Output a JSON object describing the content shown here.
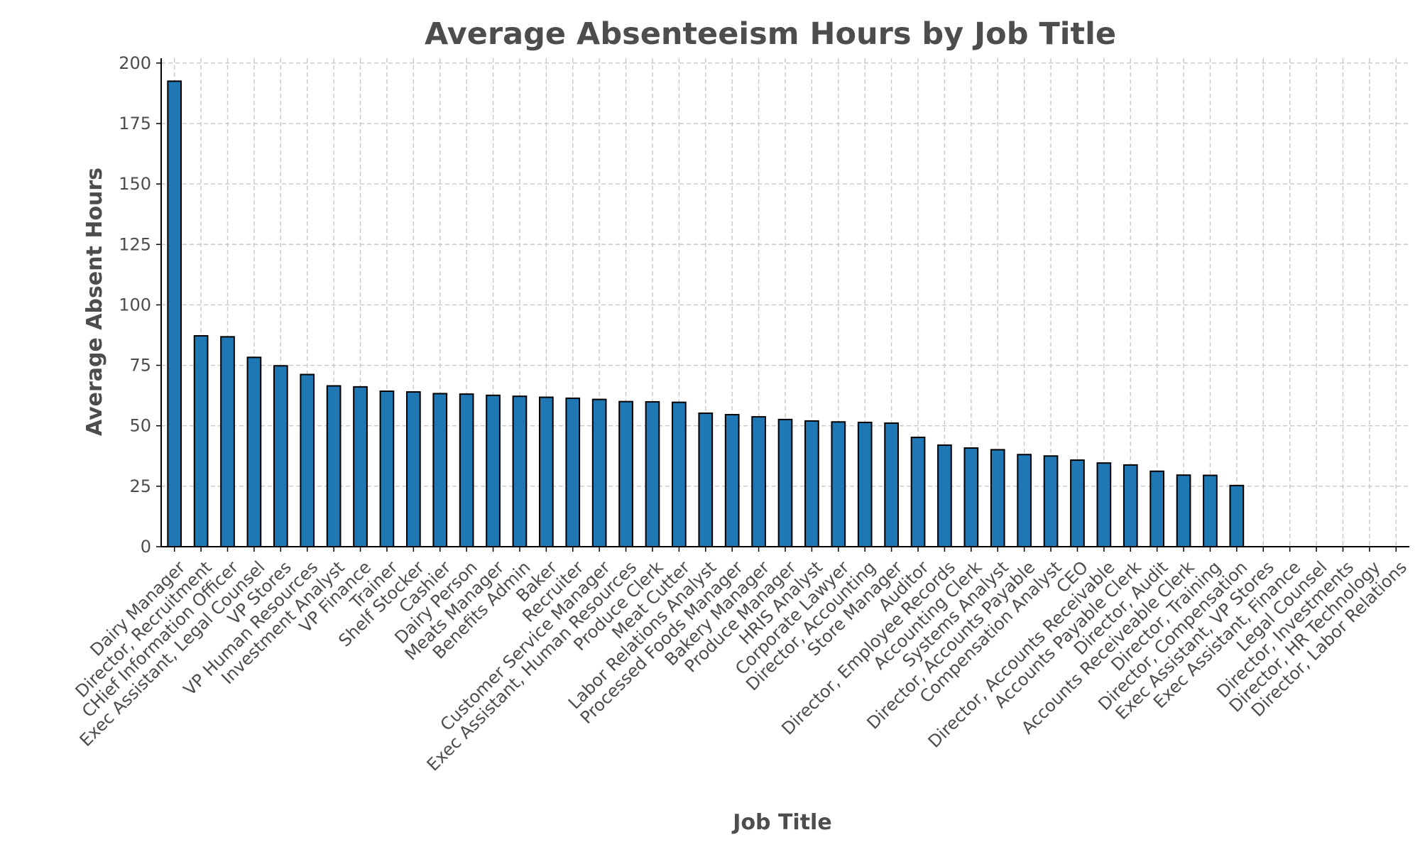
{
  "chart_data": {
    "type": "bar",
    "title": "Average Absenteeism Hours by Job Title",
    "xlabel": "Job Title",
    "ylabel": "Average Absent Hours",
    "ylim": [
      0,
      202
    ],
    "yticks": [
      0,
      25,
      50,
      75,
      100,
      125,
      150,
      175,
      200
    ],
    "grid": true,
    "bar_color": "#1f77b4",
    "edge_color": "#000000",
    "categories": [
      "Dairy Manager",
      "Director, Recruitment",
      "CHief Information Officer",
      "Exec Assistant, Legal Counsel",
      "VP Stores",
      "VP Human Resources",
      "Investment Analyst",
      "VP Finance",
      "Trainer",
      "Shelf Stocker",
      "Cashier",
      "Dairy Person",
      "Meats Manager",
      "Benefits Admin",
      "Baker",
      "Recruiter",
      "Customer Service Manager",
      "Exec Assistant, Human Resources",
      "Produce Clerk",
      "Meat Cutter",
      "Labor Relations Analyst",
      "Processed Foods Manager",
      "Bakery Manager",
      "Produce Manager",
      "HRIS Analyst",
      "Corporate Lawyer",
      "Director, Accounting",
      "Store Manager",
      "Auditor",
      "Director, Employee Records",
      "Accounting Clerk",
      "Systems Analyst",
      "Director, Accounts Payable",
      "Compensation Analyst",
      "CEO",
      "Director, Accounts Receivable",
      "Accounts Payable Clerk",
      "Director, Audit",
      "Accounts Receiveable Clerk",
      "Director, Training",
      "Director, Compensation",
      "Exec Assistant, VP Stores",
      "Exec Assistant, Finance",
      "Legal Counsel",
      "Director, Investments",
      "Director, HR Technology",
      "Director, Labor Relations"
    ],
    "values": [
      192.5,
      87.2,
      86.8,
      78.3,
      74.8,
      71.2,
      66.5,
      66.1,
      64.3,
      64.0,
      63.3,
      63.1,
      62.6,
      62.2,
      61.8,
      61.4,
      60.9,
      60.0,
      59.9,
      59.7,
      55.2,
      54.6,
      53.7,
      52.6,
      52.0,
      51.6,
      51.4,
      51.1,
      45.2,
      42.0,
      40.8,
      40.1,
      38.1,
      37.5,
      35.8,
      34.6,
      33.8,
      31.2,
      29.6,
      29.5,
      25.3,
      0,
      0,
      0,
      0,
      0,
      0
    ]
  }
}
